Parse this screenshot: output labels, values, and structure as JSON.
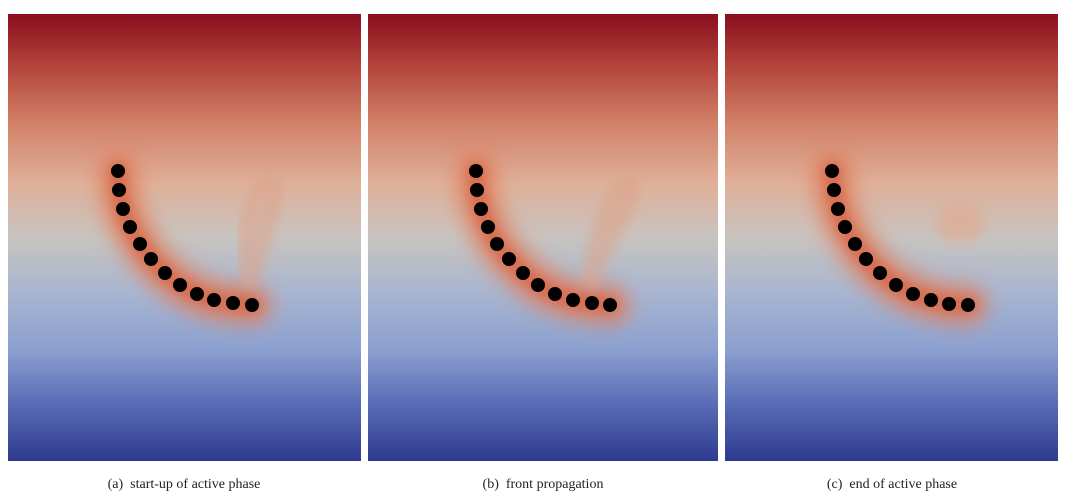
{
  "figure": {
    "panels": [
      {
        "label": "(a)",
        "caption": "start-up of active phase"
      },
      {
        "label": "(b)",
        "caption": "front propagation"
      },
      {
        "label": "(c)",
        "caption": "end of active phase"
      }
    ]
  }
}
